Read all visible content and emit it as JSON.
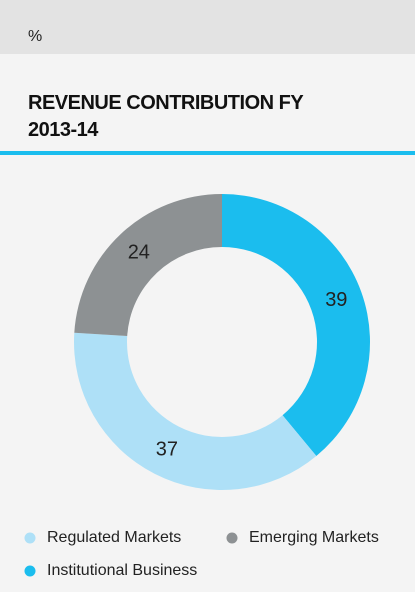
{
  "chart_data": {
    "type": "donut",
    "unit": "%",
    "title": "REVENUE CONTRIBUTION FY 2013-14",
    "categories": [
      "Institutional Business",
      "Regulated Markets",
      "Emerging Markets"
    ],
    "values": [
      39,
      37,
      24
    ],
    "colors": [
      "#1bbdee",
      "#aee0f7",
      "#8d9193"
    ]
  }
}
